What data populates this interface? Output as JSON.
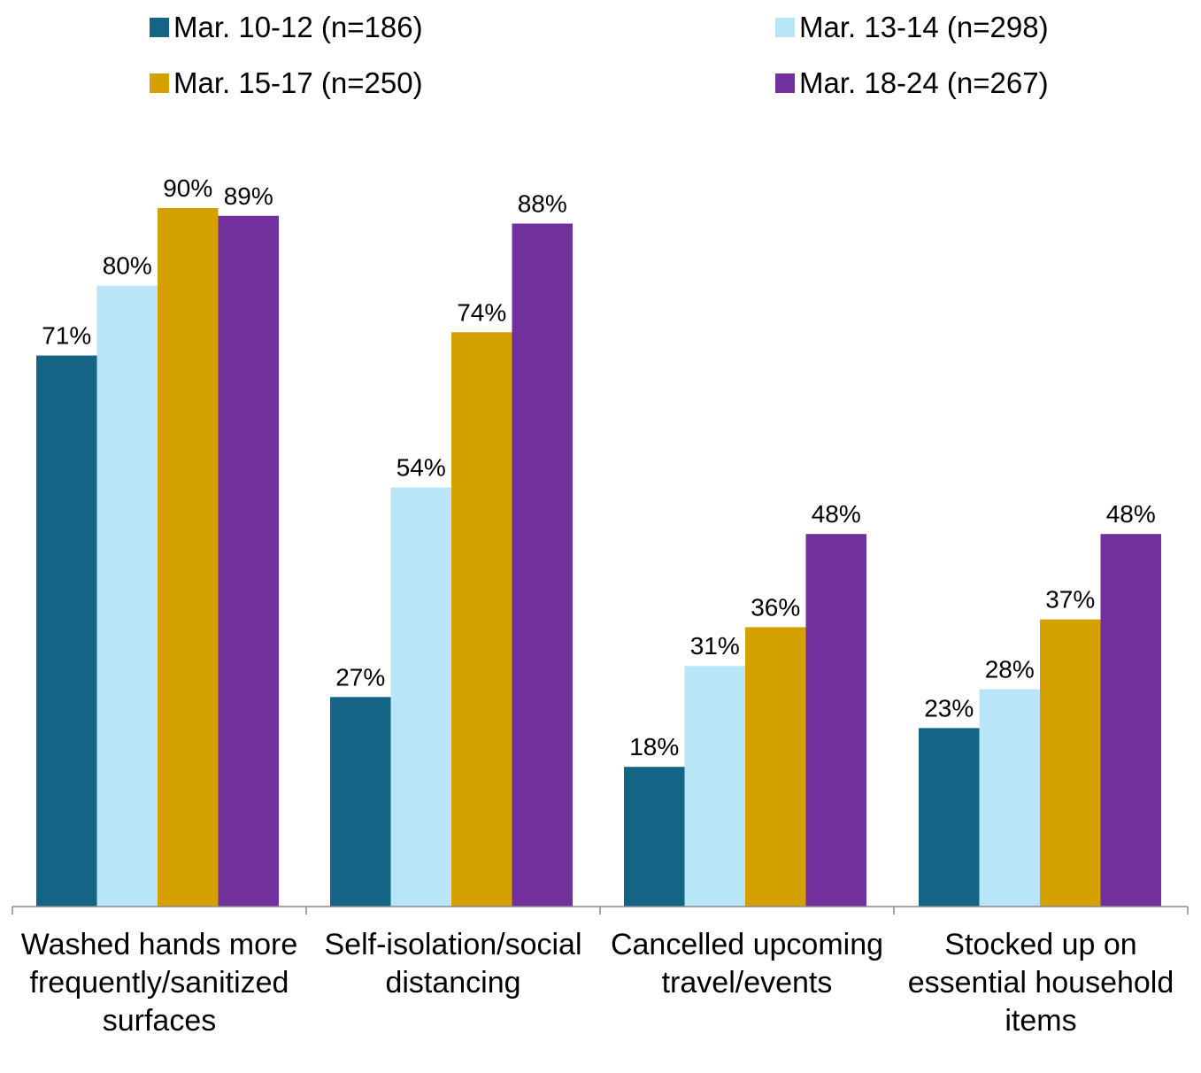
{
  "chart_data": {
    "type": "bar",
    "title": "",
    "xlabel": "",
    "ylabel": "",
    "ylim": [
      0,
      100
    ],
    "grid": false,
    "legend_position": "top",
    "categories": [
      "Washed hands more frequently/sanitized surfaces",
      "Self-isolation/social distancing",
      "Cancelled upcoming travel/events",
      "Stocked up on essential household items"
    ],
    "series": [
      {
        "name": "Mar. 10-12 (n=186)",
        "color": "#146585",
        "values": [
          71,
          27,
          18,
          23
        ]
      },
      {
        "name": "Mar. 13-14 (n=298)",
        "color": "#B9E6F7",
        "values": [
          80,
          54,
          31,
          28
        ]
      },
      {
        "name": "Mar. 15-17 (n=250)",
        "color": "#D5A100",
        "values": [
          90,
          74,
          36,
          37
        ]
      },
      {
        "name": "Mar. 18-24 (n=267)",
        "color": "#71309C",
        "values": [
          89,
          88,
          48,
          48
        ]
      }
    ],
    "data_labels": [
      [
        "71%",
        "27%",
        "18%",
        "23%"
      ],
      [
        "80%",
        "54%",
        "31%",
        "28%"
      ],
      [
        "90%",
        "74%",
        "36%",
        "37%"
      ],
      [
        "89%",
        "88%",
        "48%",
        "48%"
      ]
    ]
  }
}
